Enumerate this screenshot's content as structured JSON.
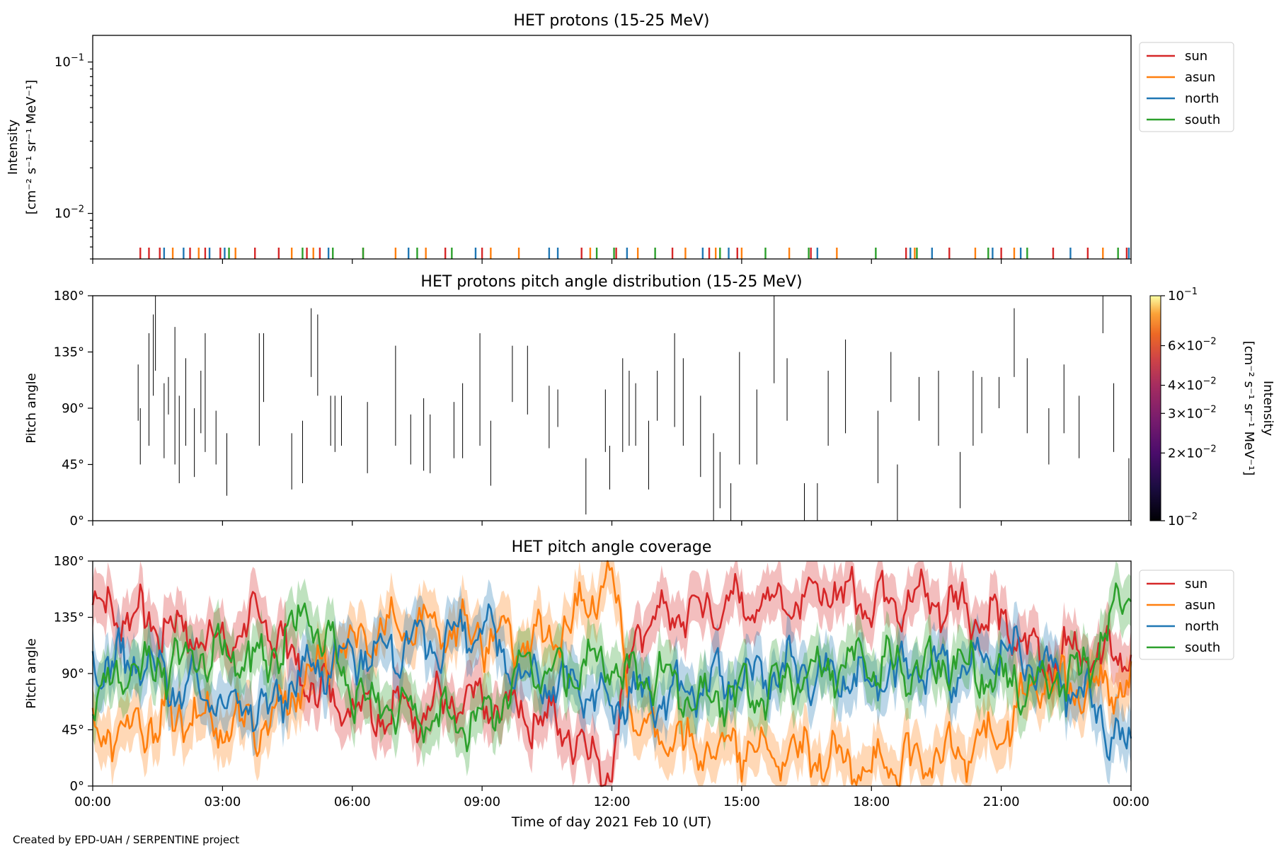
{
  "footer": {
    "credit": "Created by EPD-UAH / SERPENTINE project"
  },
  "legend": {
    "items": [
      {
        "label": "sun",
        "color": "#d62728"
      },
      {
        "label": "asun",
        "color": "#ff7f0e"
      },
      {
        "label": "north",
        "color": "#1f77b4"
      },
      {
        "label": "south",
        "color": "#2ca02c"
      }
    ]
  },
  "chart_data": [
    {
      "type": "line",
      "title": "HET protons (15-25 MeV)",
      "ylabel": "Intensity",
      "ylabel_units": "[cm⁻² s⁻¹ sr⁻¹ MeV⁻¹]",
      "yscale": "log",
      "ylim": [
        0.005,
        0.15
      ],
      "yticks": [
        {
          "value": 0.01,
          "base": "10",
          "exp": "−2"
        },
        {
          "value": 0.1,
          "base": "10",
          "exp": "−1"
        }
      ],
      "legend_placement": "upper-right-outside",
      "note": "Values near the bottom axis appear as sparse spikes only",
      "series": [
        {
          "name": "sun",
          "x_hours": [
            1.1,
            1.3,
            1.55,
            2.25,
            2.6,
            2.95,
            3.75,
            4.3,
            4.95,
            5.25,
            6.25,
            8.15,
            9.0,
            11.3,
            12.1,
            13.4,
            14.25,
            14.9,
            16.6,
            18.8,
            19.8,
            21.0,
            22.2,
            23.0,
            23.9
          ]
        },
        {
          "name": "asun",
          "x_hours": [
            1.85,
            2.45,
            3.3,
            4.6,
            5.1,
            7.0,
            7.7,
            9.2,
            9.85,
            11.5,
            12.6,
            13.7,
            14.4,
            15.0,
            16.1,
            17.2,
            19.0,
            20.4,
            21.3,
            23.35
          ]
        },
        {
          "name": "north",
          "x_hours": [
            1.65,
            2.1,
            2.7,
            3.05,
            5.45,
            7.3,
            8.85,
            10.55,
            10.75,
            12.35,
            14.1,
            14.7,
            16.75,
            18.9,
            19.4,
            20.8,
            21.45,
            22.6,
            23.95
          ]
        },
        {
          "name": "south",
          "x_hours": [
            3.15,
            4.85,
            5.55,
            6.25,
            7.5,
            8.3,
            11.65,
            12.05,
            13.0,
            14.5,
            15.55,
            16.55,
            18.1,
            19.05,
            20.7,
            21.6,
            23.7
          ]
        }
      ]
    },
    {
      "type": "heatmap",
      "title": "HET protons pitch angle distribution (15-25 MeV)",
      "ylabel": "Pitch angle",
      "ylim": [
        0,
        180
      ],
      "yticks": [
        "0°",
        "45°",
        "90°",
        "135°",
        "180°"
      ],
      "colorbar": {
        "label": "Intensity",
        "units": "[cm⁻² s⁻¹ sr⁻¹ MeV⁻¹]",
        "scale": "log",
        "range": [
          0.01,
          0.1
        ],
        "ticks": [
          {
            "value": 0.01,
            "mant": "",
            "base": "10",
            "exp": "−2"
          },
          {
            "value": 0.02,
            "mant": "2×",
            "base": "10",
            "exp": "−2"
          },
          {
            "value": 0.03,
            "mant": "3×",
            "base": "10",
            "exp": "−2"
          },
          {
            "value": 0.04,
            "mant": "4×",
            "base": "10",
            "exp": "−2"
          },
          {
            "value": 0.06,
            "mant": "6×",
            "base": "10",
            "exp": "−2"
          },
          {
            "value": 0.1,
            "mant": "",
            "base": "10",
            "exp": "−1"
          }
        ]
      },
      "segments": [
        [
          1.05,
          80,
          125
        ],
        [
          1.1,
          45,
          90
        ],
        [
          1.3,
          60,
          150
        ],
        [
          1.4,
          100,
          165
        ],
        [
          1.45,
          120,
          180
        ],
        [
          1.65,
          50,
          110
        ],
        [
          1.75,
          85,
          115
        ],
        [
          1.9,
          45,
          155
        ],
        [
          2.0,
          30,
          100
        ],
        [
          2.15,
          60,
          130
        ],
        [
          2.35,
          35,
          90
        ],
        [
          2.5,
          70,
          120
        ],
        [
          2.6,
          55,
          150
        ],
        [
          2.85,
          45,
          88
        ],
        [
          3.1,
          20,
          70
        ],
        [
          3.85,
          60,
          150
        ],
        [
          3.95,
          95,
          150
        ],
        [
          4.6,
          25,
          70
        ],
        [
          4.85,
          30,
          80
        ],
        [
          5.05,
          115,
          170
        ],
        [
          5.2,
          100,
          165
        ],
        [
          5.5,
          60,
          100
        ],
        [
          5.6,
          55,
          100
        ],
        [
          5.75,
          60,
          100
        ],
        [
          6.35,
          38,
          95
        ],
        [
          7.0,
          60,
          140
        ],
        [
          7.35,
          45,
          85
        ],
        [
          7.65,
          40,
          98
        ],
        [
          7.8,
          38,
          85
        ],
        [
          8.35,
          50,
          95
        ],
        [
          8.55,
          50,
          110
        ],
        [
          8.95,
          60,
          150
        ],
        [
          9.2,
          28,
          80
        ],
        [
          9.7,
          95,
          140
        ],
        [
          10.05,
          85,
          140
        ],
        [
          10.55,
          58,
          108
        ],
        [
          10.75,
          75,
          105
        ],
        [
          11.4,
          5,
          50
        ],
        [
          11.85,
          55,
          105
        ],
        [
          11.95,
          25,
          60
        ],
        [
          12.25,
          55,
          130
        ],
        [
          12.4,
          60,
          120
        ],
        [
          12.55,
          60,
          110
        ],
        [
          12.85,
          25,
          80
        ],
        [
          13.05,
          80,
          120
        ],
        [
          13.45,
          75,
          150
        ],
        [
          13.65,
          60,
          130
        ],
        [
          14.05,
          35,
          100
        ],
        [
          14.35,
          0,
          70
        ],
        [
          14.5,
          10,
          55
        ],
        [
          14.75,
          0,
          30
        ],
        [
          14.95,
          45,
          135
        ],
        [
          15.35,
          45,
          105
        ],
        [
          15.75,
          110,
          180
        ],
        [
          16.05,
          80,
          130
        ],
        [
          16.45,
          0,
          30
        ],
        [
          16.75,
          0,
          30
        ],
        [
          17.0,
          60,
          120
        ],
        [
          17.4,
          70,
          145
        ],
        [
          18.15,
          30,
          88
        ],
        [
          18.45,
          95,
          135
        ],
        [
          18.6,
          0,
          45
        ],
        [
          19.1,
          80,
          115
        ],
        [
          19.55,
          60,
          120
        ],
        [
          20.05,
          10,
          55
        ],
        [
          20.35,
          60,
          120
        ],
        [
          20.55,
          70,
          115
        ],
        [
          20.95,
          90,
          115
        ],
        [
          21.3,
          115,
          170
        ],
        [
          21.6,
          70,
          130
        ],
        [
          22.1,
          45,
          90
        ],
        [
          22.45,
          70,
          125
        ],
        [
          22.8,
          50,
          100
        ],
        [
          23.35,
          150,
          180
        ],
        [
          23.6,
          55,
          110
        ],
        [
          23.95,
          0,
          50
        ]
      ]
    },
    {
      "type": "area",
      "title": "HET pitch angle coverage",
      "xlabel": "Time of day 2021 Feb 10 (UT)",
      "ylabel": "Pitch angle",
      "xlim_hours": [
        0,
        24
      ],
      "xticks": [
        "00:00",
        "03:00",
        "06:00",
        "09:00",
        "12:00",
        "15:00",
        "18:00",
        "21:00",
        "00:00"
      ],
      "ylim": [
        0,
        180
      ],
      "yticks": [
        "0°",
        "45°",
        "90°",
        "135°",
        "180°"
      ],
      "legend_placement": "upper-right-outside",
      "shade_halfwidth_deg": 20,
      "series": [
        {
          "name": "sun",
          "x_hours": [
            0,
            1,
            2,
            3,
            4,
            5,
            6,
            7,
            8,
            9,
            10,
            11,
            11.5,
            12,
            12.5,
            13,
            14,
            15,
            16,
            17,
            18,
            19,
            20,
            21,
            22,
            23,
            24
          ],
          "values": [
            145,
            135,
            125,
            115,
            135,
            80,
            65,
            60,
            65,
            65,
            60,
            45,
            25,
            15,
            120,
            135,
            140,
            145,
            150,
            155,
            150,
            150,
            145,
            130,
            100,
            110,
            105
          ]
        },
        {
          "name": "asun",
          "x_hours": [
            0,
            1,
            2,
            3,
            4,
            5,
            6,
            7,
            8,
            9,
            10,
            11,
            11.5,
            12,
            12.5,
            13,
            14,
            15,
            16,
            17,
            18,
            19,
            20,
            21,
            22,
            23,
            24
          ],
          "values": [
            40,
            45,
            55,
            50,
            50,
            90,
            115,
            125,
            130,
            120,
            115,
            125,
            150,
            170,
            50,
            45,
            30,
            30,
            25,
            20,
            15,
            20,
            25,
            45,
            85,
            75,
            80
          ]
        },
        {
          "name": "north",
          "x_hours": [
            0,
            1,
            2,
            3,
            4,
            5,
            6,
            7,
            8,
            9,
            10,
            11,
            11.5,
            12,
            12.5,
            13,
            14,
            15,
            16,
            17,
            18,
            19,
            20,
            21,
            22,
            23,
            24
          ],
          "values": [
            95,
            100,
            80,
            70,
            60,
            95,
            105,
            110,
            115,
            125,
            85,
            80,
            75,
            65,
            75,
            70,
            80,
            85,
            95,
            90,
            85,
            95,
            90,
            105,
            95,
            70,
            25
          ]
        },
        {
          "name": "south",
          "x_hours": [
            0,
            1,
            2,
            3,
            4,
            5,
            6,
            7,
            8,
            9,
            10,
            11,
            11.5,
            12,
            12.5,
            13,
            14,
            15,
            16,
            17,
            18,
            19,
            20,
            21,
            22,
            23,
            24
          ],
          "values": [
            75,
            90,
            100,
            105,
            100,
            140,
            75,
            60,
            55,
            50,
            95,
            90,
            100,
            95,
            85,
            90,
            70,
            75,
            80,
            95,
            100,
            95,
            100,
            85,
            80,
            95,
            160
          ]
        }
      ]
    }
  ]
}
